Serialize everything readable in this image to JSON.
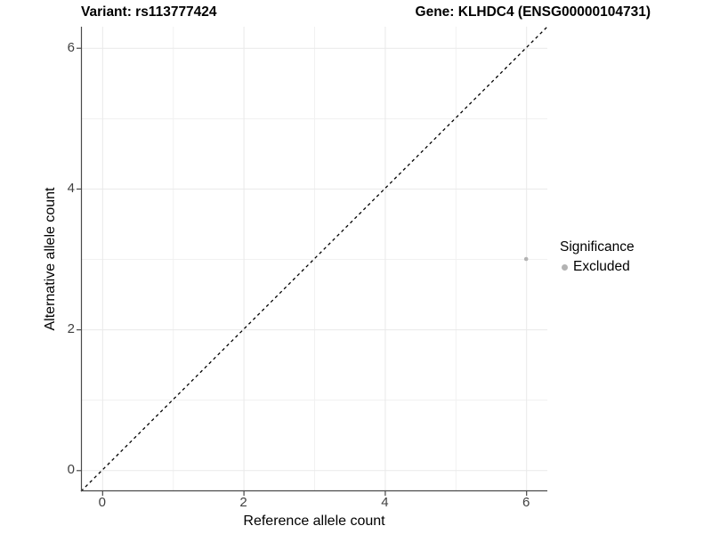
{
  "chart_data": {
    "type": "scatter",
    "title_left": "Variant: rs113777424",
    "title_right": "Gene: KLHDC4 (ENSG00000104731)",
    "xlabel": "Reference allele count",
    "ylabel": "Alternative allele count",
    "xlim": [
      -0.3,
      6.3
    ],
    "ylim": [
      -0.3,
      6.3
    ],
    "x_ticks": [
      0,
      2,
      4,
      6
    ],
    "y_ticks": [
      0,
      2,
      4,
      6
    ],
    "minor_gridlines": [
      1,
      3,
      5
    ],
    "grid": true,
    "reference_line": {
      "type": "identity",
      "style": "dashed",
      "from": [
        -0.3,
        -0.3
      ],
      "to": [
        6.3,
        6.3
      ],
      "color": "#000000"
    },
    "series": [
      {
        "name": "Excluded",
        "color": "#b3b3b3",
        "points": [
          {
            "x": 6,
            "y": 3
          }
        ]
      }
    ],
    "legend": {
      "title": "Significance",
      "position": "right",
      "items": [
        {
          "label": "Excluded",
          "color": "#b3b3b3"
        }
      ]
    }
  },
  "colors": {
    "background": "#ffffff",
    "gridline_major": "#e9e9e9",
    "gridline_minor": "#f1f1f1",
    "axis_line": "#4a4a4a",
    "tick_label": "#404040",
    "point": "#b3b3b3"
  }
}
